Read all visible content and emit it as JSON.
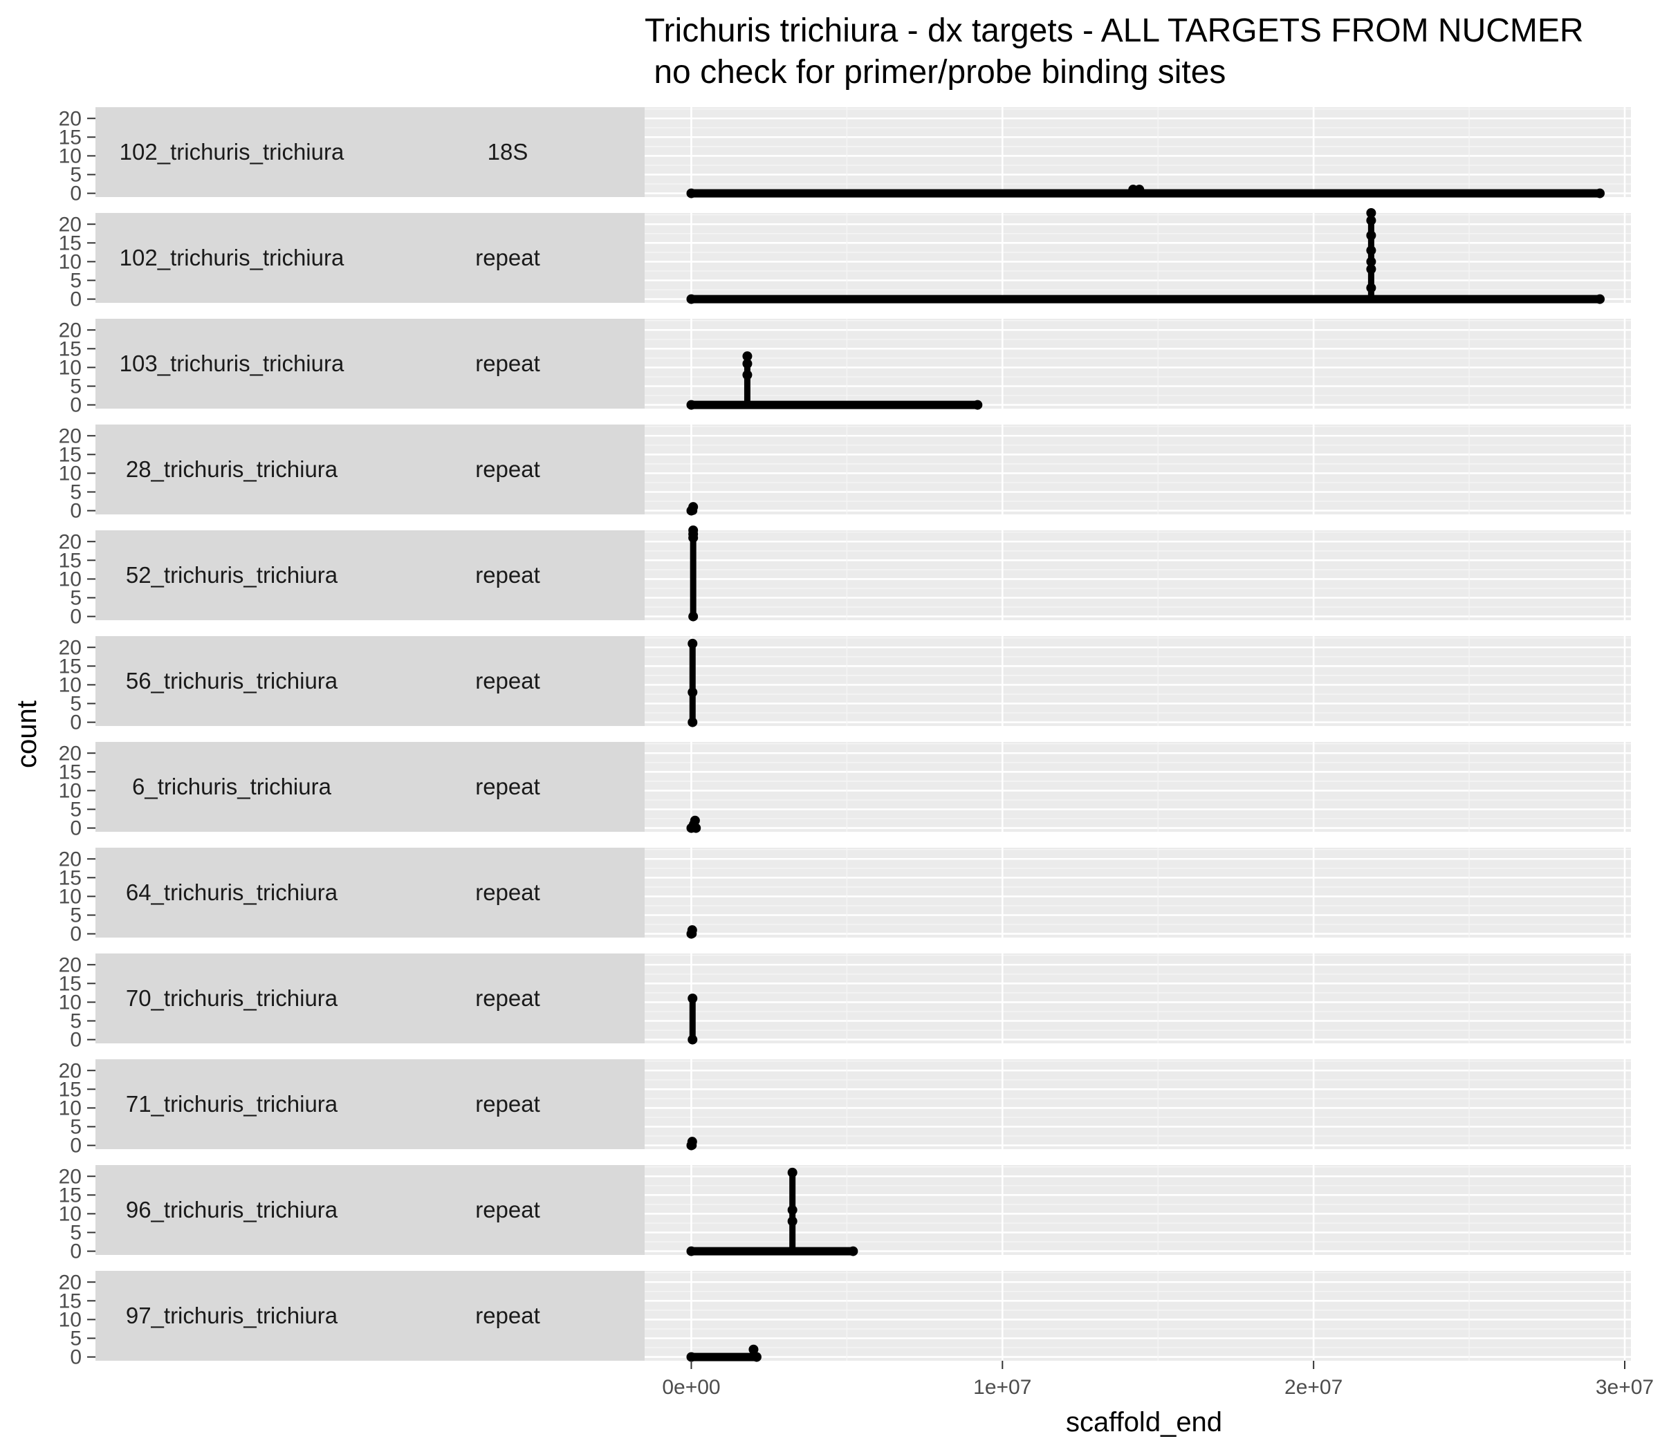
{
  "chart_data": {
    "type": "line",
    "title": "Trichuris trichiura - dx targets - ALL TARGETS FROM NUCMER",
    "subtitle": " no check for primer/probe binding sites",
    "xlabel": "scaffold_end",
    "ylabel": "count",
    "xlim": [
      -1500000,
      30200000
    ],
    "ylim": [
      -1,
      23
    ],
    "x_ticks": [
      0,
      10000000,
      20000000,
      30000000
    ],
    "x_tick_labels": [
      "0e+00",
      "1e+07",
      "2e+07",
      "3e+07"
    ],
    "y_ticks": [
      0,
      5,
      10,
      15,
      20
    ],
    "y_tick_labels": [
      "0",
      "5",
      "10",
      "15",
      "20"
    ],
    "grid": true,
    "facets": [
      {
        "label": "102_trichuris_trichiura",
        "target": "18S",
        "baseline": [
          0,
          29200000
        ],
        "spikes": [
          [
            14200000,
            1
          ],
          [
            14400000,
            1
          ]
        ],
        "points": [
          [
            0,
            0
          ],
          [
            29200000,
            0
          ],
          [
            14200000,
            1
          ],
          [
            14400000,
            1
          ]
        ]
      },
      {
        "label": "102_trichuris_trichiura",
        "target": "repeat",
        "baseline": [
          0,
          29200000
        ],
        "spikes": [
          [
            21850000,
            23
          ]
        ],
        "points": [
          [
            0,
            0
          ],
          [
            29200000,
            0
          ],
          [
            21850000,
            3
          ],
          [
            21850000,
            8
          ],
          [
            21850000,
            10
          ],
          [
            21850000,
            13
          ],
          [
            21850000,
            17
          ],
          [
            21850000,
            21
          ],
          [
            21850000,
            23
          ]
        ]
      },
      {
        "label": "103_trichuris_trichiura",
        "target": "repeat",
        "baseline": [
          0,
          9200000
        ],
        "spikes": [
          [
            1800000,
            13
          ]
        ],
        "points": [
          [
            0,
            0
          ],
          [
            9200000,
            0
          ],
          [
            1800000,
            8
          ],
          [
            1800000,
            11
          ],
          [
            1800000,
            13
          ]
        ]
      },
      {
        "label": "28_trichuris_trichiura",
        "target": "repeat",
        "baseline": [
          0,
          60000
        ],
        "spikes": [
          [
            60000,
            1
          ]
        ],
        "points": [
          [
            0,
            0
          ],
          [
            60000,
            1
          ]
        ]
      },
      {
        "label": "52_trichuris_trichiura",
        "target": "repeat",
        "baseline": null,
        "spikes": [
          [
            60000,
            23
          ]
        ],
        "points": [
          [
            60000,
            0
          ],
          [
            60000,
            21
          ],
          [
            60000,
            22
          ],
          [
            60000,
            23
          ]
        ]
      },
      {
        "label": "56_trichuris_trichiura",
        "target": "repeat",
        "baseline": null,
        "spikes": [
          [
            40000,
            21
          ]
        ],
        "points": [
          [
            40000,
            0
          ],
          [
            40000,
            8
          ],
          [
            40000,
            21
          ]
        ]
      },
      {
        "label": "6_trichuris_trichiura",
        "target": "repeat",
        "baseline": [
          0,
          150000
        ],
        "spikes": [
          [
            120000,
            2
          ]
        ],
        "points": [
          [
            0,
            0
          ],
          [
            150000,
            0
          ],
          [
            80000,
            1
          ],
          [
            120000,
            2
          ]
        ]
      },
      {
        "label": "64_trichuris_trichiura",
        "target": "repeat",
        "baseline": [
          0,
          40000
        ],
        "spikes": [
          [
            30000,
            1
          ]
        ],
        "points": [
          [
            0,
            0
          ],
          [
            30000,
            1
          ]
        ]
      },
      {
        "label": "70_trichuris_trichiura",
        "target": "repeat",
        "baseline": null,
        "spikes": [
          [
            40000,
            11
          ]
        ],
        "points": [
          [
            40000,
            0
          ],
          [
            40000,
            11
          ]
        ]
      },
      {
        "label": "71_trichuris_trichiura",
        "target": "repeat",
        "baseline": [
          0,
          40000
        ],
        "spikes": [
          [
            30000,
            1
          ]
        ],
        "points": [
          [
            0,
            0
          ],
          [
            30000,
            1
          ]
        ]
      },
      {
        "label": "96_trichuris_trichiura",
        "target": "repeat",
        "baseline": [
          0,
          5200000
        ],
        "spikes": [
          [
            3250000,
            21
          ]
        ],
        "points": [
          [
            0,
            0
          ],
          [
            5200000,
            0
          ],
          [
            3250000,
            8
          ],
          [
            3250000,
            11
          ],
          [
            3250000,
            21
          ]
        ]
      },
      {
        "label": "97_trichuris_trichiura",
        "target": "repeat",
        "baseline": [
          0,
          2100000
        ],
        "spikes": [
          [
            2000000,
            2
          ]
        ],
        "points": [
          [
            0,
            0
          ],
          [
            2100000,
            0
          ],
          [
            2000000,
            2
          ]
        ]
      }
    ],
    "colors": {
      "panel_bg": "#ebebeb",
      "strip_bg": "#d9d9d9",
      "grid_major": "#ffffff",
      "grid_minor": "#f5f5f5",
      "mark": "#000000",
      "tick_text": "#4d4d4d"
    }
  }
}
